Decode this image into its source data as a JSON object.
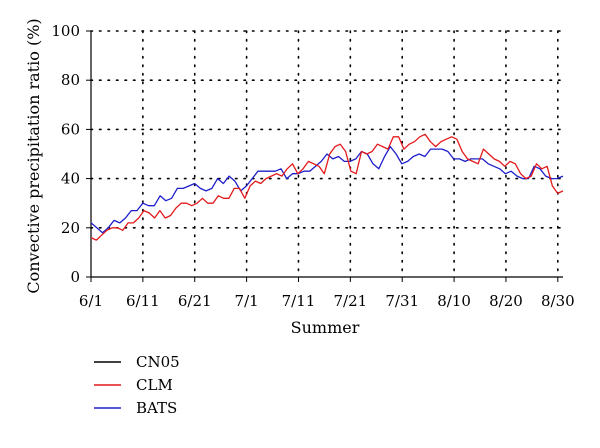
{
  "chart_data": {
    "type": "line",
    "xlabel": "Summer",
    "ylabel": "Convective precipitation ratio (%)",
    "ylim": [
      0,
      100
    ],
    "yticks": [
      0,
      20,
      40,
      60,
      80,
      100
    ],
    "xlim": [
      0,
      91
    ],
    "xtick_labels": [
      "6/1",
      "6/11",
      "6/21",
      "7/1",
      "7/11",
      "7/21",
      "7/31",
      "8/10",
      "8/20",
      "8/30"
    ],
    "grid": "dotted",
    "legend_position": "bottom-left",
    "series": [
      {
        "name": "CN05",
        "color": "#000000",
        "values": []
      },
      {
        "name": "CLM",
        "color": "#e31a1c",
        "values": [
          16,
          15,
          17,
          19,
          20,
          20,
          19,
          22,
          22,
          24,
          27,
          26,
          24,
          27,
          24,
          25,
          28,
          30,
          30,
          29,
          30,
          32,
          30,
          30,
          33,
          32,
          32,
          36,
          36,
          32,
          37,
          39,
          38,
          40,
          41,
          42,
          41,
          44,
          46,
          42,
          44,
          47,
          46,
          45,
          42,
          50,
          53,
          54,
          51,
          43,
          42,
          51,
          50,
          51,
          54,
          53,
          52,
          57,
          57,
          52,
          54,
          55,
          57,
          58,
          55,
          53,
          55,
          56,
          57,
          56,
          51,
          48,
          47,
          46,
          52,
          50,
          48,
          47,
          45,
          47,
          46,
          42,
          40,
          41,
          46,
          44,
          45,
          37,
          34,
          35
        ]
      },
      {
        "name": "BATS",
        "color": "#1f1fcc",
        "values": [
          22,
          20,
          18,
          20,
          23,
          22,
          24,
          27,
          27,
          30,
          29,
          29,
          33,
          31,
          32,
          36,
          36,
          37,
          38,
          36,
          35,
          36,
          40,
          38,
          41,
          39,
          35,
          37,
          40,
          43,
          43,
          43,
          43,
          44,
          40,
          42,
          42,
          43,
          43,
          45,
          47,
          50,
          48,
          49,
          47,
          47,
          48,
          51,
          50,
          46,
          44,
          49,
          53,
          50,
          46,
          47,
          49,
          50,
          49,
          52,
          52,
          52,
          51,
          48,
          48,
          47,
          48,
          48,
          48,
          46,
          45,
          44,
          42,
          43,
          41,
          40,
          40,
          45,
          44,
          41,
          40,
          40,
          41
        ]
      }
    ]
  }
}
